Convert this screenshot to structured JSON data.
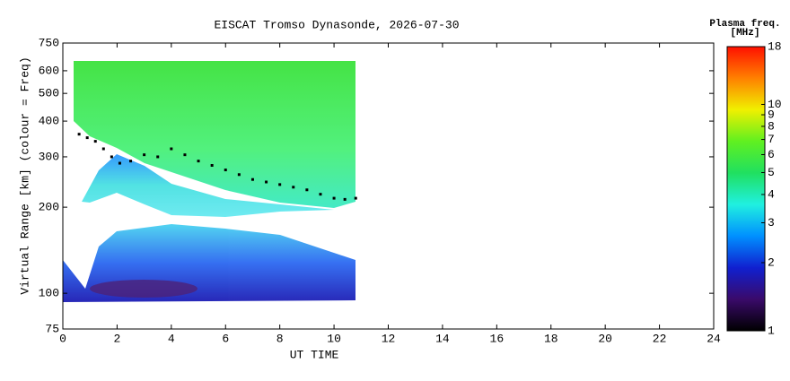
{
  "chart_data": {
    "type": "scatter",
    "title": "EISCAT Tromso Dynasonde, 2026-07-30",
    "x_label": "UT TIME",
    "y_label": "Virtual Range [km] (colour = Freq)",
    "xlim": [
      0,
      24
    ],
    "xticks": [
      0,
      2,
      4,
      6,
      8,
      10,
      12,
      14,
      16,
      18,
      20,
      22,
      24
    ],
    "ylim": [
      75,
      750
    ],
    "yticks": [
      75,
      100,
      200,
      300,
      400,
      500,
      600,
      750
    ],
    "y_scale": "log",
    "x": [
      0.6,
      0.9,
      1.2,
      1.5,
      1.8,
      2.1,
      2.5,
      3.0,
      3.5,
      4.0,
      4.5,
      5.0,
      5.5,
      6.0,
      6.5,
      7.0,
      7.5,
      8.0,
      8.5,
      9.0,
      9.5,
      10.0,
      10.4,
      10.8
    ],
    "values": [
      360,
      350,
      340,
      320,
      300,
      285,
      290,
      305,
      300,
      320,
      305,
      290,
      280,
      270,
      260,
      250,
      245,
      240,
      235,
      230,
      222,
      215,
      213,
      215
    ],
    "color": "#000000",
    "colorbar": {
      "label": [
        "Plasma freq.",
        "[MHz]"
      ],
      "lim": [
        1,
        18
      ],
      "scale": "log",
      "ticks": [
        1,
        2,
        3,
        4,
        5,
        6,
        7,
        8,
        9,
        10,
        18
      ],
      "colors": [
        "#000000",
        "#3a0a6a",
        "#1020d0",
        "#0090ff",
        "#20f0e0",
        "#20e060",
        "#60f020",
        "#f0f000",
        "#ff8000",
        "#ff1000"
      ]
    }
  }
}
